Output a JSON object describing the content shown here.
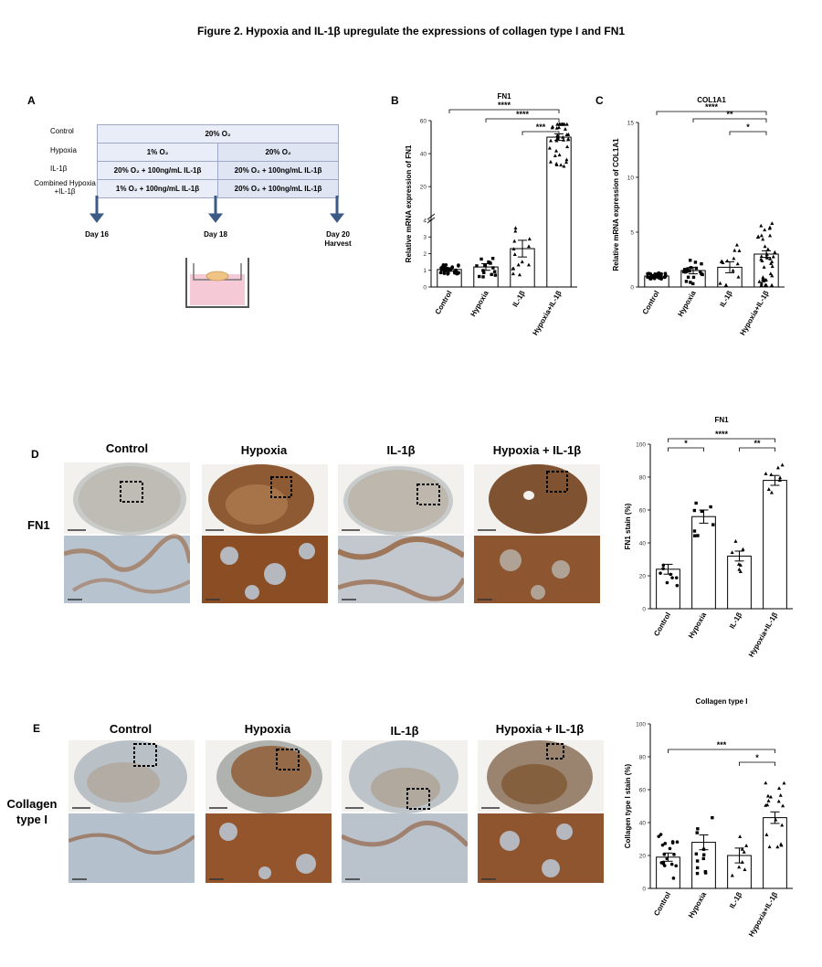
{
  "figure_title": "Figure 2. Hypoxia and IL-1β upregulate the expressions of collagen type I and FN1",
  "panel_a": {
    "label": "A",
    "rows": [
      {
        "name": "Control",
        "cells": [
          "20% O₂"
        ]
      },
      {
        "name": "Hypoxia",
        "cells": [
          "1% O₂",
          "20% O₂"
        ]
      },
      {
        "name": "IL-1β",
        "cells": [
          "20% O₂ + 100ng/mL IL-1β",
          "20% O₂ + 100ng/mL IL-1β"
        ]
      },
      {
        "name": "Combined Hypoxia +IL-1β",
        "cells": [
          "1% O₂ + 100ng/mL IL-1β",
          "20% O₂ + 100ng/mL IL-1β"
        ]
      }
    ],
    "days": [
      "Day 16",
      "Day 18",
      "Day 20 Harvest"
    ],
    "colors": {
      "cell_fill": "#e9edf7",
      "cell_fill_alt": "#dfe5f3",
      "arrow": "#3b5a86"
    }
  },
  "panel_labels": {
    "b": "B",
    "c": "C",
    "d": "D",
    "e": "E"
  },
  "micro": {
    "columns": [
      "Control",
      "Hypoxia",
      "IL-1β",
      "Hypoxia + IL-1β"
    ],
    "row_d": "FN1",
    "row_e": "Collagen type I"
  },
  "chart_data": [
    {
      "id": "B",
      "type": "bar",
      "title": "FN1",
      "ylabel": "Relative mRNA expression of FN1",
      "categories": [
        "Control",
        "Hypoxia",
        "IL-1β",
        "Hypoxia+IL-1β"
      ],
      "values": [
        1.05,
        1.2,
        2.3,
        50
      ],
      "sem": [
        0.1,
        0.2,
        0.5,
        2
      ],
      "axis_break": true,
      "yticks_lower": [
        0,
        1,
        2,
        3,
        4
      ],
      "yticks_upper": [
        20,
        40,
        60
      ],
      "significance": [
        {
          "from": 0,
          "to": 3,
          "label": "****"
        },
        {
          "from": 1,
          "to": 3,
          "label": "****"
        },
        {
          "from": 2,
          "to": 3,
          "label": "***"
        }
      ]
    },
    {
      "id": "C",
      "type": "bar",
      "title": "COL1A1",
      "ylabel": "Relative mRNA expression of COL1A1",
      "categories": [
        "Control",
        "Hypoxia",
        "IL-1β",
        "Hypoxia+IL-1β"
      ],
      "values": [
        1.0,
        1.5,
        1.8,
        3.0
      ],
      "sem": [
        0.1,
        0.3,
        0.5,
        0.3
      ],
      "ylim": [
        0,
        15
      ],
      "yticks": [
        0,
        5,
        10,
        15
      ],
      "significance": [
        {
          "from": 0,
          "to": 3,
          "label": "****"
        },
        {
          "from": 1,
          "to": 3,
          "label": "**"
        },
        {
          "from": 2,
          "to": 3,
          "label": "*"
        }
      ]
    },
    {
      "id": "D",
      "type": "bar",
      "title": "FN1",
      "ylabel": "FN1 stain (%)",
      "categories": [
        "Control",
        "Hypoxia",
        "IL-1β",
        "Hypoxia+IL-1β"
      ],
      "values": [
        24,
        56,
        32,
        78
      ],
      "sem": [
        3,
        4,
        3,
        3
      ],
      "ylim": [
        0,
        100
      ],
      "yticks": [
        0,
        20,
        40,
        60,
        80,
        100
      ],
      "significance": [
        {
          "from": 0,
          "to": 3,
          "label": "****"
        },
        {
          "from": 0,
          "to": 1,
          "label": "*"
        },
        {
          "from": 2,
          "to": 3,
          "label": "**"
        }
      ]
    },
    {
      "id": "E",
      "type": "bar",
      "title": "Collagen type I",
      "ylabel": "Collagen type I stain (%)",
      "categories": [
        "Control",
        "Hypoxia",
        "IL-1β",
        "Hypoxia+IL-1β"
      ],
      "values": [
        19,
        28,
        20,
        43
      ],
      "sem": [
        2.5,
        4.5,
        4.5,
        3.5
      ],
      "ylim": [
        0,
        100
      ],
      "yticks": [
        0,
        20,
        40,
        60,
        80,
        100
      ],
      "significance": [
        {
          "from": 0,
          "to": 3,
          "label": "***"
        },
        {
          "from": 2,
          "to": 3,
          "label": "*"
        }
      ]
    }
  ]
}
